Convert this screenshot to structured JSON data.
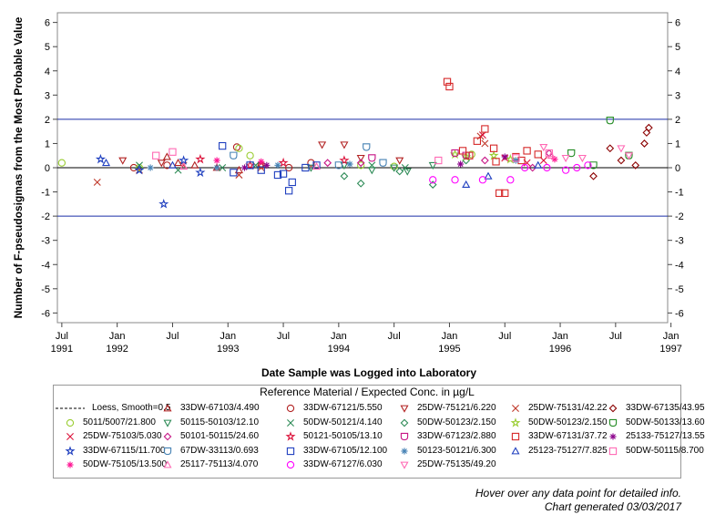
{
  "chart_data": {
    "type": "scatter",
    "xlabel": "Date Sample was Logged into Laboratory",
    "ylabel": "Number of F-pseudosigmas from the Most Probable Value",
    "ylim": [
      -6.4,
      6.4
    ],
    "yticks": [
      -6,
      -5,
      -4,
      -3,
      -2,
      -1,
      0,
      1,
      2,
      3,
      4,
      5,
      6
    ],
    "xlim": [
      1991.46,
      1996.97
    ],
    "xticks": [
      {
        "value": 1991.5,
        "label": "Jul",
        "year": "1991"
      },
      {
        "value": 1992.0,
        "label": "Jan",
        "year": "1992"
      },
      {
        "value": 1992.5,
        "label": "Jul",
        "year": ""
      },
      {
        "value": 1993.0,
        "label": "Jan",
        "year": "1993"
      },
      {
        "value": 1993.5,
        "label": "Jul",
        "year": ""
      },
      {
        "value": 1994.0,
        "label": "Jan",
        "year": "1994"
      },
      {
        "value": 1994.5,
        "label": "Jul",
        "year": ""
      },
      {
        "value": 1995.0,
        "label": "Jan",
        "year": "1995"
      },
      {
        "value": 1995.5,
        "label": "Jul",
        "year": ""
      },
      {
        "value": 1996.0,
        "label": "Jan",
        "year": "1996"
      },
      {
        "value": 1996.5,
        "label": "Jul",
        "year": ""
      },
      {
        "value": 1997.0,
        "label": "Jan",
        "year": "1997"
      }
    ],
    "reference_lines": [
      {
        "y": 2,
        "color": "#1a2ea8"
      },
      {
        "y": -2,
        "color": "#1a2ea8"
      },
      {
        "y": 0,
        "color": "#000000"
      }
    ],
    "legend": {
      "title": "Reference Material / Expected Conc. in µg/L",
      "placement": "bottom"
    },
    "series": [
      {
        "name": "Loess, Smooth=0.5",
        "marker": "dash",
        "color": "#000000",
        "points": []
      },
      {
        "name": "33DW-67103/4.490",
        "marker": "triangle",
        "color": "#b22222",
        "points": [
          [
            1992.45,
            0.45
          ],
          [
            1992.55,
            0.2
          ],
          [
            1992.7,
            0.1
          ],
          [
            1992.9,
            0.0
          ],
          [
            1993.1,
            -0.1
          ],
          [
            1993.3,
            0.1
          ]
        ]
      },
      {
        "name": "33DW-67121/5.550",
        "marker": "circle",
        "color": "#b22222",
        "points": [
          [
            1992.15,
            0.0
          ],
          [
            1992.45,
            0.1
          ],
          [
            1993.08,
            0.85
          ],
          [
            1993.3,
            0.1
          ],
          [
            1993.55,
            0.0
          ],
          [
            1993.75,
            0.2
          ]
        ]
      },
      {
        "name": "25DW-75121/6.220",
        "marker": "triangle-down",
        "color": "#b22222",
        "points": [
          [
            1992.05,
            0.3
          ],
          [
            1992.4,
            0.2
          ],
          [
            1993.85,
            0.95
          ],
          [
            1994.05,
            0.95
          ],
          [
            1994.2,
            0.4
          ],
          [
            1994.55,
            0.3
          ]
        ]
      },
      {
        "name": "25DW-75131/42.22",
        "marker": "x",
        "color": "#c0392b",
        "points": [
          [
            1991.82,
            -0.6
          ],
          [
            1992.2,
            -0.1
          ],
          [
            1992.6,
            0.1
          ],
          [
            1993.1,
            -0.3
          ],
          [
            1993.3,
            0.0
          ],
          [
            1995.28,
            1.3
          ],
          [
            1995.32,
            1.0
          ]
        ]
      },
      {
        "name": "33DW-67135/43.95",
        "marker": "diamond",
        "color": "#8b0000",
        "points": [
          [
            1996.3,
            -0.35
          ],
          [
            1996.45,
            0.8
          ],
          [
            1996.55,
            0.3
          ],
          [
            1996.68,
            0.1
          ],
          [
            1996.76,
            1.0
          ],
          [
            1996.78,
            1.45
          ],
          [
            1996.8,
            1.65
          ]
        ]
      },
      {
        "name": "5011/5007/21.800",
        "marker": "circle",
        "color": "#9acd32",
        "points": [
          [
            1991.5,
            0.2
          ],
          [
            1992.2,
            0.0
          ],
          [
            1993.1,
            0.8
          ],
          [
            1993.2,
            0.5
          ],
          [
            1994.2,
            0.1
          ],
          [
            1994.5,
            0.05
          ],
          [
            1995.2,
            0.55
          ]
        ]
      },
      {
        "name": "50115-50103/12.10",
        "marker": "triangle-down",
        "color": "#2e8b57",
        "points": [
          [
            1993.75,
            0.0
          ],
          [
            1994.05,
            0.1
          ],
          [
            1994.3,
            -0.1
          ],
          [
            1994.5,
            0.0
          ],
          [
            1994.62,
            -0.15
          ],
          [
            1994.85,
            0.1
          ]
        ]
      },
      {
        "name": "50DW-50121/4.140",
        "marker": "x",
        "color": "#2e8b57",
        "points": [
          [
            1992.2,
            0.1
          ],
          [
            1992.55,
            -0.1
          ],
          [
            1992.95,
            0.0
          ],
          [
            1993.25,
            0.1
          ],
          [
            1994.3,
            0.1
          ],
          [
            1994.6,
            0.0
          ]
        ]
      },
      {
        "name": "50DW-50123/2.150",
        "marker": "diamond",
        "color": "#2e8b57",
        "points": [
          [
            1994.05,
            -0.35
          ],
          [
            1994.2,
            -0.65
          ],
          [
            1994.55,
            -0.15
          ],
          [
            1994.85,
            -0.7
          ],
          [
            1995.15,
            0.3
          ]
        ]
      },
      {
        "name": "50DW-50123/2.150",
        "marker": "star",
        "color": "#9acd32",
        "points": [
          [
            1995.05,
            0.55
          ],
          [
            1995.15,
            0.45
          ],
          [
            1995.4,
            0.5
          ],
          [
            1995.55,
            0.35
          ]
        ]
      },
      {
        "name": "50DW-50133/13.60",
        "marker": "shield",
        "color": "#228b22",
        "points": [
          [
            1996.1,
            0.6
          ],
          [
            1996.3,
            0.1
          ],
          [
            1996.45,
            1.95
          ],
          [
            1996.62,
            0.5
          ]
        ]
      },
      {
        "name": "25DW-75103/5.030",
        "marker": "x",
        "color": "#dc143c",
        "points": [
          [
            1995.3,
            1.35
          ],
          [
            1995.5,
            0.4
          ],
          [
            1995.7,
            0.2
          ],
          [
            1995.85,
            0.3
          ]
        ]
      },
      {
        "name": "50101-50115/24.60",
        "marker": "diamond",
        "color": "#c71585",
        "points": [
          [
            1993.9,
            0.2
          ],
          [
            1994.2,
            0.2
          ],
          [
            1995.32,
            0.3
          ],
          [
            1995.75,
            0.0
          ],
          [
            1995.9,
            0.6
          ]
        ]
      },
      {
        "name": "50121-50105/13.10",
        "marker": "star",
        "color": "#dc143c",
        "points": [
          [
            1992.75,
            0.35
          ],
          [
            1993.2,
            0.1
          ],
          [
            1993.5,
            0.2
          ],
          [
            1994.05,
            0.3
          ]
        ]
      },
      {
        "name": "33DW-67123/2.880",
        "marker": "shield",
        "color": "#c71585",
        "points": [
          [
            1994.3,
            0.4
          ],
          [
            1995.05,
            0.6
          ],
          [
            1995.15,
            0.5
          ]
        ]
      },
      {
        "name": "33DW-67131/37.72",
        "marker": "square",
        "color": "#d62728",
        "points": [
          [
            1994.98,
            3.55
          ],
          [
            1995.0,
            3.35
          ],
          [
            1995.12,
            0.7
          ],
          [
            1995.18,
            0.5
          ],
          [
            1995.25,
            1.1
          ],
          [
            1995.32,
            1.6
          ],
          [
            1995.4,
            0.8
          ],
          [
            1995.42,
            0.25
          ],
          [
            1995.45,
            -1.05
          ],
          [
            1995.5,
            -1.05
          ],
          [
            1995.6,
            0.45
          ],
          [
            1995.65,
            0.3
          ],
          [
            1995.7,
            0.7
          ],
          [
            1995.8,
            0.55
          ]
        ]
      },
      {
        "name": "25133-75127/13.55",
        "marker": "asterisk",
        "color": "#8b008b",
        "points": [
          [
            1993.15,
            0.0
          ],
          [
            1993.35,
            0.1
          ],
          [
            1995.1,
            0.15
          ],
          [
            1995.5,
            0.45
          ]
        ]
      },
      {
        "name": "33DW-67115/11.700",
        "marker": "star",
        "color": "#1f3fbf",
        "points": [
          [
            1991.85,
            0.35
          ],
          [
            1992.2,
            -0.1
          ],
          [
            1992.42,
            -1.5
          ],
          [
            1992.6,
            0.3
          ],
          [
            1992.75,
            -0.2
          ]
        ]
      },
      {
        "name": "67DW-33113/0.693",
        "marker": "shield",
        "color": "#4682b4",
        "points": [
          [
            1993.05,
            0.5
          ],
          [
            1994.0,
            0.1
          ],
          [
            1994.25,
            0.85
          ],
          [
            1994.4,
            0.2
          ]
        ]
      },
      {
        "name": "33DW-67105/12.100",
        "marker": "square",
        "color": "#1f3fbf",
        "points": [
          [
            1992.95,
            0.9
          ],
          [
            1993.05,
            -0.2
          ],
          [
            1993.2,
            0.1
          ],
          [
            1993.3,
            -0.1
          ],
          [
            1993.45,
            -0.3
          ],
          [
            1993.5,
            -0.25
          ],
          [
            1993.55,
            -0.95
          ],
          [
            1993.58,
            -0.6
          ],
          [
            1993.7,
            0.0
          ],
          [
            1993.8,
            0.1
          ]
        ]
      },
      {
        "name": "50123-50121/6.300",
        "marker": "asterisk",
        "color": "#4682b4",
        "points": [
          [
            1992.3,
            0.0
          ],
          [
            1992.9,
            0.0
          ],
          [
            1993.45,
            0.1
          ],
          [
            1994.1,
            0.15
          ],
          [
            1995.6,
            0.3
          ]
        ]
      },
      {
        "name": "25123-75127/7.825",
        "marker": "triangle",
        "color": "#1f3fbf",
        "points": [
          [
            1991.9,
            0.2
          ],
          [
            1992.5,
            0.1
          ],
          [
            1995.15,
            -0.7
          ],
          [
            1995.35,
            -0.35
          ],
          [
            1995.8,
            0.1
          ]
        ]
      },
      {
        "name": "50DW-50115/8.700",
        "marker": "square",
        "color": "#ff69b4",
        "points": [
          [
            1992.35,
            0.5
          ],
          [
            1992.5,
            0.65
          ],
          [
            1994.9,
            0.3
          ],
          [
            1995.6,
            0.4
          ],
          [
            1995.9,
            0.6
          ]
        ]
      },
      {
        "name": "50DW-75105/13.500",
        "marker": "asterisk",
        "color": "#ff1493",
        "points": [
          [
            1992.9,
            0.3
          ],
          [
            1993.3,
            0.25
          ],
          [
            1995.95,
            0.35
          ]
        ]
      },
      {
        "name": "25117-75113/4.070",
        "marker": "triangle",
        "color": "#ff69b4",
        "points": [
          [
            1992.6,
            0.05
          ],
          [
            1993.8,
            0.05
          ],
          [
            1995.92,
            0.5
          ]
        ]
      },
      {
        "name": "33DW-67127/6.030",
        "marker": "circle",
        "color": "#ff00ff",
        "points": [
          [
            1994.85,
            -0.5
          ],
          [
            1995.05,
            -0.5
          ],
          [
            1995.3,
            -0.5
          ],
          [
            1995.55,
            -0.5
          ],
          [
            1995.68,
            0.0
          ],
          [
            1995.88,
            0.0
          ],
          [
            1996.05,
            -0.1
          ],
          [
            1996.15,
            0.0
          ],
          [
            1996.25,
            0.1
          ]
        ]
      },
      {
        "name": "25DW-75135/49.20",
        "marker": "triangle-down",
        "color": "#ff69b4",
        "points": [
          [
            1995.85,
            0.85
          ],
          [
            1996.05,
            0.4
          ],
          [
            1996.2,
            0.4
          ],
          [
            1996.55,
            0.8
          ],
          [
            1996.62,
            0.5
          ]
        ]
      }
    ]
  },
  "footer": {
    "hover_note": "Hover over any data point for detailed info.",
    "generated": "Chart generated 03/03/2017"
  }
}
